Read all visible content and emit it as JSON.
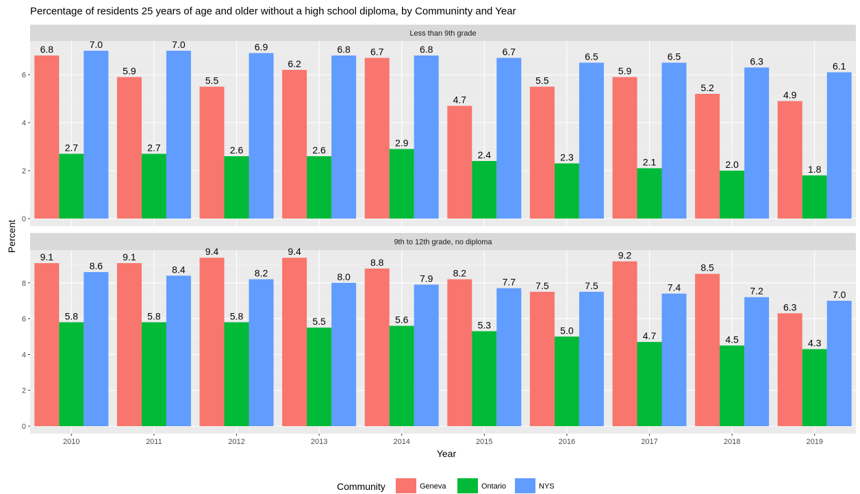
{
  "chart_data": {
    "type": "bar",
    "title": "Percentage of residents 25 years of age and older without a high school diploma, by Commun­inty and Year",
    "xlabel": "Year",
    "ylabel": "Percent",
    "categories": [
      "2010",
      "2011",
      "2012",
      "2013",
      "2014",
      "2015",
      "2016",
      "2017",
      "2018",
      "2019"
    ],
    "legend": {
      "title": "Community",
      "placement": "bottom",
      "entries": [
        "Geneva",
        "Ontario",
        "NYS"
      ]
    },
    "colors": [
      "#F8766D",
      "#00BA38",
      "#619CFF"
    ],
    "grid": true,
    "panels": [
      {
        "strip": "Less than 9th grade",
        "ylim": [
          0,
          7
        ],
        "yticks": [
          0,
          2,
          4,
          6
        ],
        "series": [
          {
            "name": "Geneva",
            "values": [
              6.8,
              5.9,
              5.5,
              6.2,
              6.7,
              4.7,
              5.5,
              5.9,
              5.2,
              4.9
            ]
          },
          {
            "name": "Ontario",
            "values": [
              2.7,
              2.7,
              2.6,
              2.6,
              2.9,
              2.4,
              2.3,
              2.1,
              2.0,
              1.8
            ]
          },
          {
            "name": "NYS",
            "values": [
              7.0,
              7.0,
              6.9,
              6.8,
              6.8,
              6.7,
              6.5,
              6.5,
              6.3,
              6.1
            ]
          }
        ]
      },
      {
        "strip": "9th to 12th grade, no diploma",
        "ylim": [
          0,
          9.4
        ],
        "yticks": [
          0,
          2,
          4,
          6,
          8
        ],
        "series": [
          {
            "name": "Geneva",
            "values": [
              9.1,
              9.1,
              9.4,
              9.4,
              8.8,
              8.2,
              7.5,
              9.2,
              8.5,
              6.3
            ]
          },
          {
            "name": "Ontario",
            "values": [
              5.8,
              5.8,
              5.8,
              5.5,
              5.6,
              5.3,
              5.0,
              4.7,
              4.5,
              4.3
            ]
          },
          {
            "name": "NYS",
            "values": [
              8.6,
              8.4,
              8.2,
              8.0,
              7.9,
              7.7,
              7.5,
              7.4,
              7.2,
              7.0
            ]
          }
        ]
      }
    ]
  }
}
